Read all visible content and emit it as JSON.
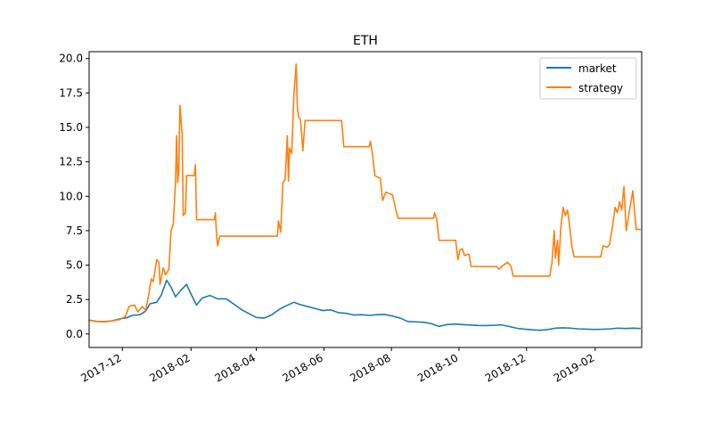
{
  "chart_data": {
    "type": "line",
    "title": "ETH",
    "xlabel": "",
    "ylabel": "",
    "xlim": [
      "2017-11-01",
      "2019-03-15"
    ],
    "ylim": [
      -0.98,
      20.5
    ],
    "x_ticks": [
      "2017-12",
      "2018-02",
      "2018-04",
      "2018-06",
      "2018-08",
      "2018-10",
      "2018-12",
      "2019-02"
    ],
    "y_ticks": [
      "0.0",
      "2.5",
      "5.0",
      "7.5",
      "10.0",
      "12.5",
      "15.0",
      "17.5",
      "20.0"
    ],
    "legend": {
      "position": "top-right"
    },
    "grid": false,
    "series": [
      {
        "name": "market",
        "color": "#1f77b4",
        "points": [
          [
            "2017-11-01",
            1.0
          ],
          [
            "2017-11-08",
            0.92
          ],
          [
            "2017-11-15",
            0.9
          ],
          [
            "2017-11-22",
            0.96
          ],
          [
            "2017-11-29",
            1.1
          ],
          [
            "2017-12-05",
            1.18
          ],
          [
            "2017-12-10",
            1.35
          ],
          [
            "2017-12-17",
            1.4
          ],
          [
            "2017-12-22",
            1.65
          ],
          [
            "2017-12-26",
            2.2
          ],
          [
            "2018-01-01",
            2.3
          ],
          [
            "2018-01-05",
            2.8
          ],
          [
            "2018-01-10",
            3.9
          ],
          [
            "2018-01-14",
            3.4
          ],
          [
            "2018-01-18",
            2.7
          ],
          [
            "2018-01-22",
            3.1
          ],
          [
            "2018-01-28",
            3.6
          ],
          [
            "2018-02-01",
            2.9
          ],
          [
            "2018-02-06",
            2.1
          ],
          [
            "2018-02-11",
            2.6
          ],
          [
            "2018-02-18",
            2.8
          ],
          [
            "2018-02-25",
            2.55
          ],
          [
            "2018-03-05",
            2.55
          ],
          [
            "2018-03-12",
            2.15
          ],
          [
            "2018-03-19",
            1.75
          ],
          [
            "2018-03-26",
            1.45
          ],
          [
            "2018-04-01",
            1.2
          ],
          [
            "2018-04-08",
            1.15
          ],
          [
            "2018-04-15",
            1.4
          ],
          [
            "2018-04-22",
            1.8
          ],
          [
            "2018-04-28",
            2.05
          ],
          [
            "2018-05-05",
            2.3
          ],
          [
            "2018-05-10",
            2.15
          ],
          [
            "2018-05-17",
            2.0
          ],
          [
            "2018-05-24",
            1.85
          ],
          [
            "2018-05-31",
            1.7
          ],
          [
            "2018-06-07",
            1.75
          ],
          [
            "2018-06-14",
            1.55
          ],
          [
            "2018-06-21",
            1.5
          ],
          [
            "2018-06-28",
            1.38
          ],
          [
            "2018-07-05",
            1.4
          ],
          [
            "2018-07-12",
            1.35
          ],
          [
            "2018-07-19",
            1.4
          ],
          [
            "2018-07-26",
            1.42
          ],
          [
            "2018-08-02",
            1.3
          ],
          [
            "2018-08-09",
            1.15
          ],
          [
            "2018-08-16",
            0.9
          ],
          [
            "2018-08-23",
            0.88
          ],
          [
            "2018-08-30",
            0.85
          ],
          [
            "2018-09-06",
            0.75
          ],
          [
            "2018-09-13",
            0.55
          ],
          [
            "2018-09-20",
            0.68
          ],
          [
            "2018-09-27",
            0.72
          ],
          [
            "2018-10-04",
            0.68
          ],
          [
            "2018-10-11",
            0.65
          ],
          [
            "2018-10-18",
            0.62
          ],
          [
            "2018-10-25",
            0.61
          ],
          [
            "2018-11-01",
            0.63
          ],
          [
            "2018-11-08",
            0.66
          ],
          [
            "2018-11-15",
            0.55
          ],
          [
            "2018-11-22",
            0.42
          ],
          [
            "2018-11-29",
            0.35
          ],
          [
            "2018-12-06",
            0.3
          ],
          [
            "2018-12-13",
            0.27
          ],
          [
            "2018-12-20",
            0.32
          ],
          [
            "2018-12-27",
            0.42
          ],
          [
            "2019-01-03",
            0.45
          ],
          [
            "2019-01-10",
            0.42
          ],
          [
            "2019-01-17",
            0.37
          ],
          [
            "2019-01-24",
            0.35
          ],
          [
            "2019-01-31",
            0.33
          ],
          [
            "2019-02-07",
            0.34
          ],
          [
            "2019-02-14",
            0.37
          ],
          [
            "2019-02-21",
            0.42
          ],
          [
            "2019-02-28",
            0.4
          ],
          [
            "2019-03-07",
            0.42
          ],
          [
            "2019-03-14",
            0.4
          ]
        ]
      },
      {
        "name": "strategy",
        "color": "#ff7f0e",
        "points": [
          [
            "2017-11-01",
            1.0
          ],
          [
            "2017-11-08",
            0.9
          ],
          [
            "2017-11-15",
            0.88
          ],
          [
            "2017-11-22",
            0.95
          ],
          [
            "2017-11-29",
            1.05
          ],
          [
            "2017-12-04",
            1.3
          ],
          [
            "2017-12-07",
            2.0
          ],
          [
            "2017-12-12",
            2.1
          ],
          [
            "2017-12-15",
            1.6
          ],
          [
            "2017-12-19",
            2.0
          ],
          [
            "2017-12-22",
            1.7
          ],
          [
            "2017-12-25",
            2.9
          ],
          [
            "2017-12-27",
            4.0
          ],
          [
            "2017-12-29",
            3.8
          ],
          [
            "2018-01-01",
            5.4
          ],
          [
            "2018-01-03",
            5.2
          ],
          [
            "2018-01-04",
            3.6
          ],
          [
            "2018-01-07",
            4.8
          ],
          [
            "2018-01-09",
            4.3
          ],
          [
            "2018-01-12",
            4.7
          ],
          [
            "2018-01-14",
            7.5
          ],
          [
            "2018-01-16",
            8.0
          ],
          [
            "2018-01-18",
            11.0
          ],
          [
            "2018-01-19",
            14.4
          ],
          [
            "2018-01-20",
            11.0
          ],
          [
            "2018-01-21",
            12.0
          ],
          [
            "2018-01-22",
            16.6
          ],
          [
            "2018-01-24",
            14.5
          ],
          [
            "2018-01-25",
            8.6
          ],
          [
            "2018-01-27",
            8.8
          ],
          [
            "2018-01-28",
            11.5
          ],
          [
            "2018-02-02",
            11.5
          ],
          [
            "2018-02-04",
            11.5
          ],
          [
            "2018-02-05",
            12.3
          ],
          [
            "2018-02-06",
            8.3
          ],
          [
            "2018-02-10",
            8.3
          ],
          [
            "2018-02-22",
            8.3
          ],
          [
            "2018-02-23",
            8.8
          ],
          [
            "2018-02-24",
            7.3
          ],
          [
            "2018-02-25",
            6.4
          ],
          [
            "2018-02-27",
            7.1
          ],
          [
            "2018-03-10",
            7.1
          ],
          [
            "2018-04-20",
            7.1
          ],
          [
            "2018-04-21",
            8.2
          ],
          [
            "2018-04-23",
            7.4
          ],
          [
            "2018-04-25",
            11.0
          ],
          [
            "2018-04-27",
            11.2
          ],
          [
            "2018-04-29",
            14.4
          ],
          [
            "2018-04-30",
            11.1
          ],
          [
            "2018-05-01",
            13.5
          ],
          [
            "2018-05-03",
            13.1
          ],
          [
            "2018-05-05",
            17.5
          ],
          [
            "2018-05-07",
            19.6
          ],
          [
            "2018-05-08",
            16.5
          ],
          [
            "2018-05-09",
            15.8
          ],
          [
            "2018-05-11",
            15.5
          ],
          [
            "2018-05-13",
            13.3
          ],
          [
            "2018-05-15",
            15.5
          ],
          [
            "2018-06-01",
            15.5
          ],
          [
            "2018-06-17",
            15.5
          ],
          [
            "2018-06-19",
            13.6
          ],
          [
            "2018-07-01",
            13.6
          ],
          [
            "2018-07-12",
            13.6
          ],
          [
            "2018-07-13",
            14.0
          ],
          [
            "2018-07-15",
            13.0
          ],
          [
            "2018-07-17",
            11.5
          ],
          [
            "2018-07-22",
            11.3
          ],
          [
            "2018-07-24",
            9.7
          ],
          [
            "2018-07-27",
            10.3
          ],
          [
            "2018-08-02",
            10.1
          ],
          [
            "2018-08-05",
            9.0
          ],
          [
            "2018-08-07",
            8.4
          ],
          [
            "2018-08-20",
            8.4
          ],
          [
            "2018-09-03",
            8.4
          ],
          [
            "2018-09-08",
            8.4
          ],
          [
            "2018-09-09",
            8.8
          ],
          [
            "2018-09-11",
            8.3
          ],
          [
            "2018-09-13",
            6.8
          ],
          [
            "2018-09-25",
            6.8
          ],
          [
            "2018-09-28",
            6.8
          ],
          [
            "2018-09-30",
            5.4
          ],
          [
            "2018-10-02",
            6.1
          ],
          [
            "2018-10-04",
            6.2
          ],
          [
            "2018-10-06",
            5.7
          ],
          [
            "2018-10-10",
            5.8
          ],
          [
            "2018-10-12",
            4.9
          ],
          [
            "2018-10-25",
            4.9
          ],
          [
            "2018-11-04",
            4.9
          ],
          [
            "2018-11-06",
            4.7
          ],
          [
            "2018-11-10",
            5.0
          ],
          [
            "2018-11-14",
            5.2
          ],
          [
            "2018-11-17",
            4.9
          ],
          [
            "2018-11-19",
            4.2
          ],
          [
            "2018-12-01",
            4.2
          ],
          [
            "2018-12-22",
            4.2
          ],
          [
            "2018-12-24",
            5.2
          ],
          [
            "2018-12-26",
            7.5
          ],
          [
            "2018-12-27",
            5.5
          ],
          [
            "2018-12-29",
            6.8
          ],
          [
            "2018-12-30",
            5.0
          ],
          [
            "2019-01-01",
            7.7
          ],
          [
            "2019-01-03",
            9.2
          ],
          [
            "2019-01-05",
            8.6
          ],
          [
            "2019-01-07",
            9.0
          ],
          [
            "2019-01-09",
            7.8
          ],
          [
            "2019-01-11",
            6.3
          ],
          [
            "2019-01-13",
            5.6
          ],
          [
            "2019-01-25",
            5.6
          ],
          [
            "2019-02-06",
            5.6
          ],
          [
            "2019-02-08",
            6.4
          ],
          [
            "2019-02-12",
            6.3
          ],
          [
            "2019-02-14",
            6.5
          ],
          [
            "2019-02-17",
            8.0
          ],
          [
            "2019-02-19",
            9.2
          ],
          [
            "2019-02-21",
            8.8
          ],
          [
            "2019-02-23",
            9.6
          ],
          [
            "2019-02-25",
            9.0
          ],
          [
            "2019-02-27",
            10.7
          ],
          [
            "2019-03-01",
            7.5
          ],
          [
            "2019-03-03",
            8.5
          ],
          [
            "2019-03-07",
            10.4
          ],
          [
            "2019-03-10",
            7.6
          ],
          [
            "2019-03-14",
            7.6
          ]
        ]
      }
    ]
  }
}
